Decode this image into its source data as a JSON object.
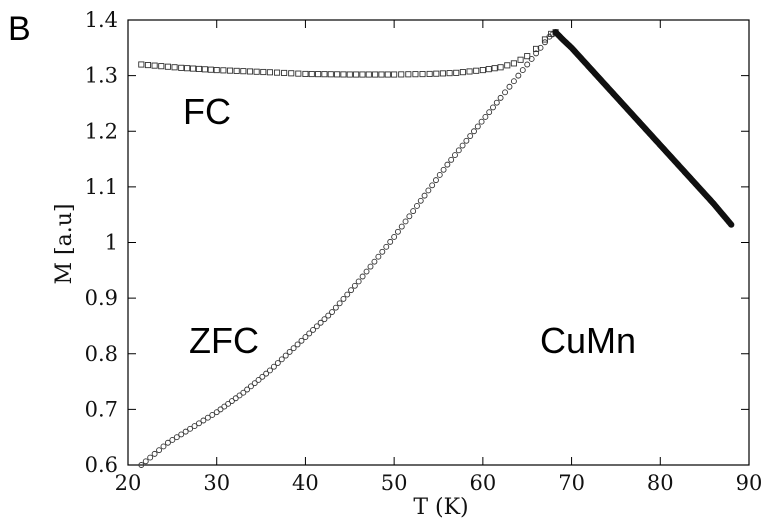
{
  "chart_data": {
    "type": "scatter",
    "panel_label": "B",
    "title": "",
    "xlabel": "T (K)",
    "ylabel": "M [a.u]",
    "xlim": [
      20,
      90
    ],
    "ylim": [
      0.6,
      1.4
    ],
    "x_ticks": [
      20,
      30,
      40,
      50,
      60,
      70,
      80,
      90
    ],
    "y_ticks": [
      0.6,
      0.7,
      0.8,
      0.9,
      1,
      1.1,
      1.2,
      1.3,
      1.4
    ],
    "y_tick_labels": [
      "0.6",
      "0.7",
      "0.8",
      "0.9",
      "1",
      "1.1",
      "1.2",
      "1.3",
      "1.4"
    ],
    "grid": false,
    "legend": "none",
    "annotations": [
      "FC",
      "ZFC",
      "CuMn"
    ],
    "series": [
      {
        "name": "FC",
        "marker": "open-square",
        "x": [
          21.5,
          23,
          24.5,
          26,
          28,
          30,
          33,
          36,
          40,
          45,
          50,
          54,
          57,
          60,
          62,
          63.5,
          65,
          66,
          67,
          67.7,
          68.2
        ],
        "y": [
          1.32,
          1.318,
          1.316,
          1.314,
          1.312,
          1.31,
          1.308,
          1.306,
          1.303,
          1.302,
          1.302,
          1.303,
          1.305,
          1.31,
          1.315,
          1.322,
          1.335,
          1.348,
          1.365,
          1.375,
          1.378
        ]
      },
      {
        "name": "ZFC",
        "marker": "open-circle",
        "x": [
          21.5,
          23,
          24.5,
          26,
          28,
          30,
          33,
          36,
          40,
          43,
          46,
          50,
          53,
          56,
          59,
          62,
          64,
          66,
          67.5,
          68.2
        ],
        "y": [
          0.6,
          0.62,
          0.64,
          0.655,
          0.675,
          0.695,
          0.73,
          0.77,
          0.83,
          0.875,
          0.93,
          1.01,
          1.075,
          1.14,
          1.2,
          1.26,
          1.3,
          1.34,
          1.37,
          1.378
        ]
      },
      {
        "name": "CuMn",
        "marker": "filled-circle",
        "x": [
          68.2,
          69,
          70,
          72,
          74,
          76,
          78,
          80,
          82,
          84,
          86,
          88
        ],
        "y": [
          1.378,
          1.365,
          1.35,
          1.315,
          1.28,
          1.245,
          1.21,
          1.175,
          1.14,
          1.105,
          1.07,
          1.032
        ]
      }
    ]
  }
}
